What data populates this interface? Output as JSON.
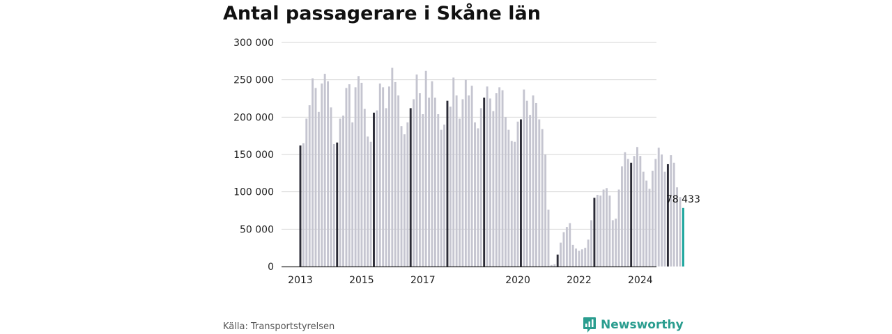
{
  "chart_data": {
    "type": "bar",
    "title": "Antal passagerare i Skåne län",
    "xlabel": "",
    "ylabel": "",
    "ylim": [
      0,
      300000
    ],
    "y_ticks": [
      {
        "value": 0,
        "label": "0"
      },
      {
        "value": 50000,
        "label": "50 000"
      },
      {
        "value": 100000,
        "label": "100 000"
      },
      {
        "value": 150000,
        "label": "150 000"
      },
      {
        "value": 200000,
        "label": "200 000"
      },
      {
        "value": 250000,
        "label": "250 000"
      },
      {
        "value": 300000,
        "label": "300 000"
      }
    ],
    "x_ticks": [
      "2013",
      "2015",
      "2017",
      "2020",
      "2022",
      "2024"
    ],
    "x_tick_index": [
      0,
      20,
      40,
      71,
      91,
      111
    ],
    "grid": true,
    "bar_spacing_months": 1,
    "start_year": 2013,
    "values": [
      162000,
      165000,
      198000,
      216000,
      252000,
      239000,
      207000,
      245000,
      258000,
      248000,
      213000,
      164000,
      166000,
      198000,
      202000,
      239000,
      244000,
      193000,
      240000,
      255000,
      246000,
      211000,
      174000,
      167000,
      206000,
      209000,
      245000,
      240000,
      212000,
      241000,
      266000,
      247000,
      229000,
      188000,
      177000,
      193000,
      212000,
      224000,
      257000,
      232000,
      204000,
      262000,
      226000,
      248000,
      226000,
      204000,
      183000,
      190000,
      222000,
      214000,
      253000,
      229000,
      198000,
      224000,
      250000,
      229000,
      242000,
      193000,
      185000,
      212000,
      226000,
      241000,
      225000,
      208000,
      232000,
      240000,
      236000,
      200000,
      183000,
      168000,
      167000,
      194000,
      197000,
      237000,
      222000,
      203000,
      229000,
      219000,
      197000,
      184000,
      150000,
      76000,
      2000,
      3000,
      16000,
      32000,
      46000,
      53000,
      58000,
      29000,
      24000,
      21000,
      23000,
      25000,
      36000,
      62000,
      92000,
      96000,
      95000,
      103000,
      105000,
      95000,
      62000,
      64000,
      103000,
      134000,
      153000,
      144000,
      139000,
      148000,
      160000,
      148000,
      127000,
      115000,
      104000,
      128000,
      144000,
      159000,
      150000,
      127000,
      137000,
      149000,
      139000,
      106000,
      93000,
      78433
    ],
    "colors": {
      "bar": "#c5c5d0",
      "january": "#2b2b36",
      "latest": "#17a39b"
    },
    "latest_label": "78 433"
  },
  "source": "Källa: Transportstyrelsen",
  "brand": {
    "name": "Newsworthy",
    "icon": "bar-chart-speech-bubble-icon",
    "color": "#2a9d8f"
  }
}
